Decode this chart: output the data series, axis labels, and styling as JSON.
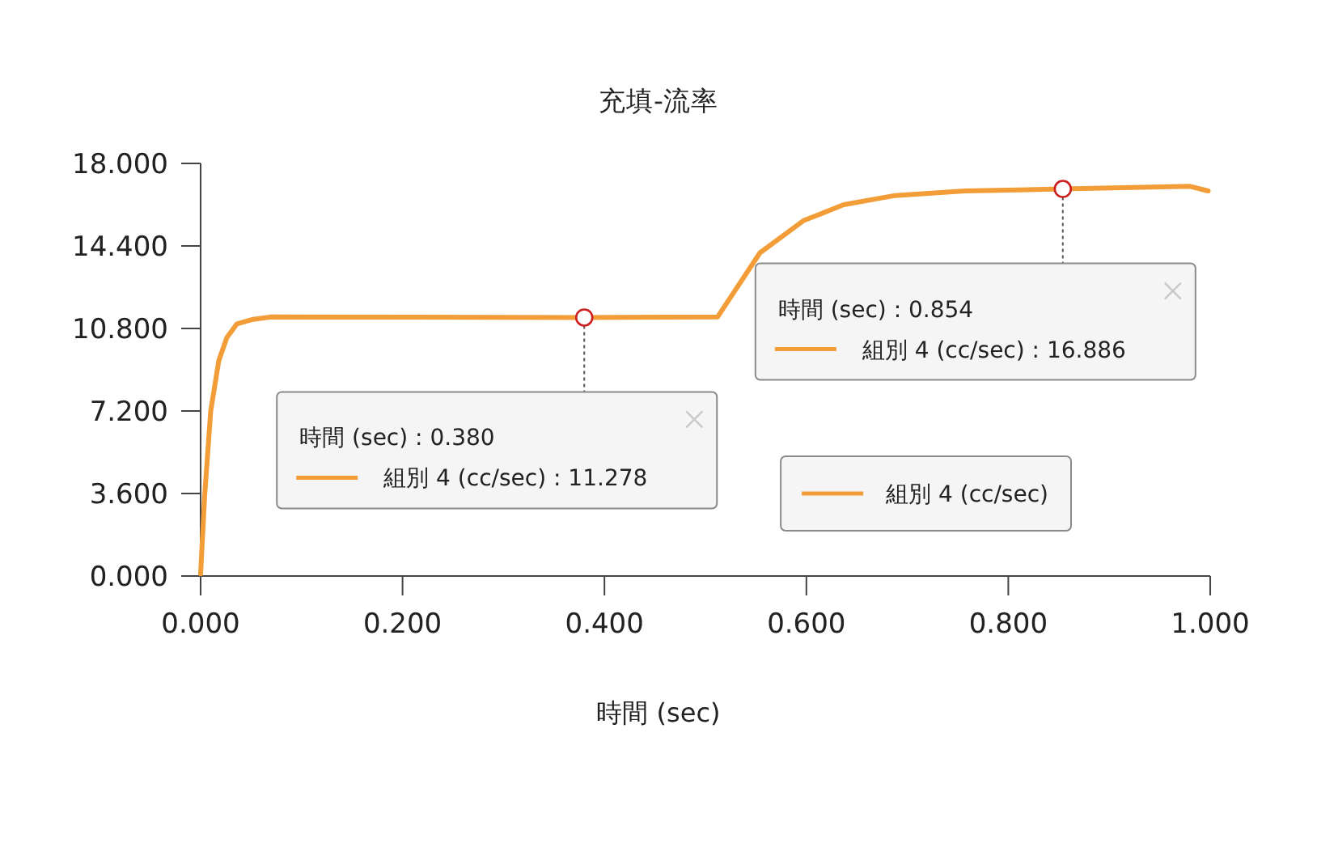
{
  "chart_data": {
    "type": "line",
    "title": "充填-流率",
    "xlabel": "時間 (sec)",
    "x": [
      0,
      0.004,
      0.01,
      0.018,
      0.026,
      0.036,
      0.052,
      0.07,
      0.38,
      0.512,
      0.554,
      0.597,
      0.637,
      0.688,
      0.757,
      0.854,
      0.98,
      0.998
    ],
    "series": [
      {
        "name": "組別 4 (cc/sec)",
        "color": "#f29d38",
        "values": [
          0.1,
          3.5,
          7.2,
          9.4,
          10.4,
          11.0,
          11.2,
          11.3,
          11.278,
          11.3,
          14.1,
          15.5,
          16.2,
          16.6,
          16.8,
          16.886,
          17.0,
          16.8
        ]
      }
    ],
    "xlim": [
      0,
      1
    ],
    "xticks": [
      {
        "value": 0,
        "label": "0.000"
      },
      {
        "value": 0.2,
        "label": "0.200"
      },
      {
        "value": 0.4,
        "label": "0.400"
      },
      {
        "value": 0.6,
        "label": "0.600"
      },
      {
        "value": 0.8,
        "label": "0.800"
      },
      {
        "value": 1,
        "label": "1.000"
      }
    ],
    "ylim": [
      0,
      18
    ],
    "yticks": [
      {
        "value": 0,
        "label": "0.000"
      },
      {
        "value": 3.6,
        "label": "3.600"
      },
      {
        "value": 7.2,
        "label": "7.200"
      },
      {
        "value": 10.8,
        "label": "10.800"
      },
      {
        "value": 14.4,
        "label": "14.400"
      },
      {
        "value": 18,
        "label": "18.000"
      }
    ],
    "legend": "bottom right",
    "annotations": [
      {
        "text": "時間 (sec) : 0.380\n組別 4 (cc/sec) : 11.278",
        "x": 0.38,
        "y": 11.278
      },
      {
        "text": "時間 (sec) : 0.854\n組別 4 (cc/sec) : 16.886",
        "x": 0.854,
        "y": 16.886
      }
    ]
  }
}
